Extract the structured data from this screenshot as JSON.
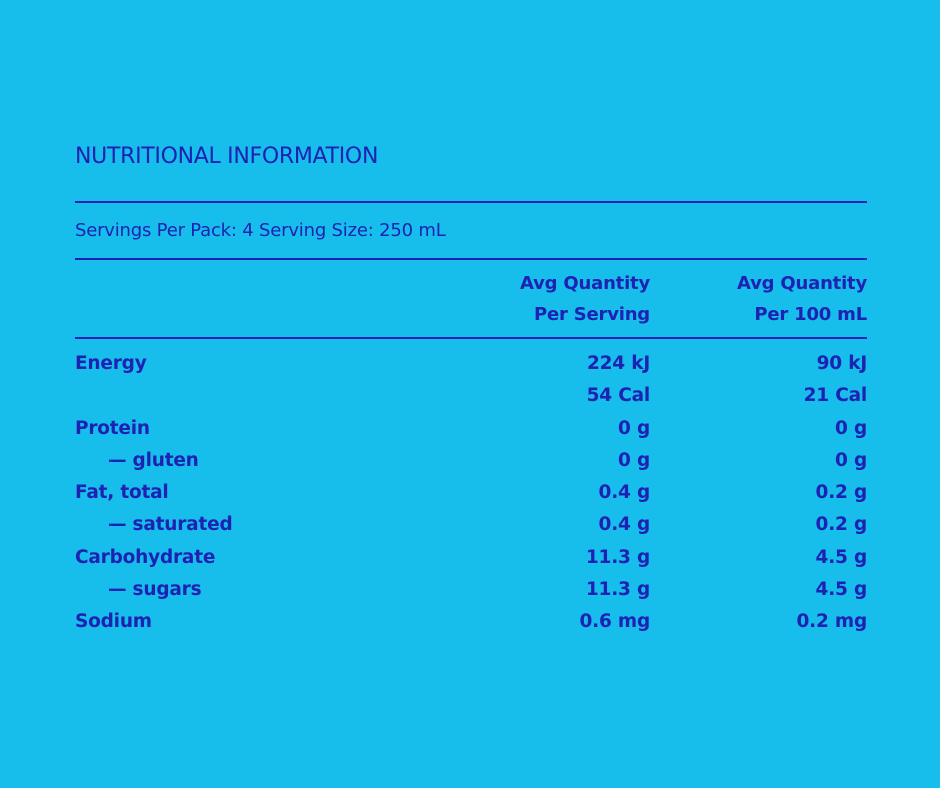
{
  "title": "NUTRITIONAL INFORMATION",
  "servings": "Servings Per Pack: 4 Serving Size: 250 mL",
  "columns": {
    "per_serving_line1": "Avg Quantity",
    "per_serving_line2": "Per Serving",
    "per_100_line1": "Avg Quantity",
    "per_100_line2": "Per 100 mL"
  },
  "rows": [
    {
      "name": "Energy",
      "per_serving": "224 kJ",
      "per_100": "90 kJ"
    },
    {
      "name": "",
      "per_serving": "54 Cal",
      "per_100": "21 Cal"
    },
    {
      "name": "Protein",
      "per_serving": "0 g",
      "per_100": "0 g"
    },
    {
      "name": "— gluten",
      "per_serving": "0 g",
      "per_100": "0 g"
    },
    {
      "name": "Fat, total",
      "per_serving": "0.4 g",
      "per_100": "0.2 g"
    },
    {
      "name": "— saturated",
      "per_serving": "0.4 g",
      "per_100": "0.2 g"
    },
    {
      "name": "Carbohydrate",
      "per_serving": "11.3 g",
      "per_100": "4.5 g"
    },
    {
      "name": "— sugars",
      "per_serving": "11.3 g",
      "per_100": "4.5 g"
    },
    {
      "name": "Sodium",
      "per_serving": "0.6 mg",
      "per_100": "0.2 mg"
    }
  ],
  "colors": {
    "background": "#17bdeb",
    "text": "#1d22b3"
  }
}
